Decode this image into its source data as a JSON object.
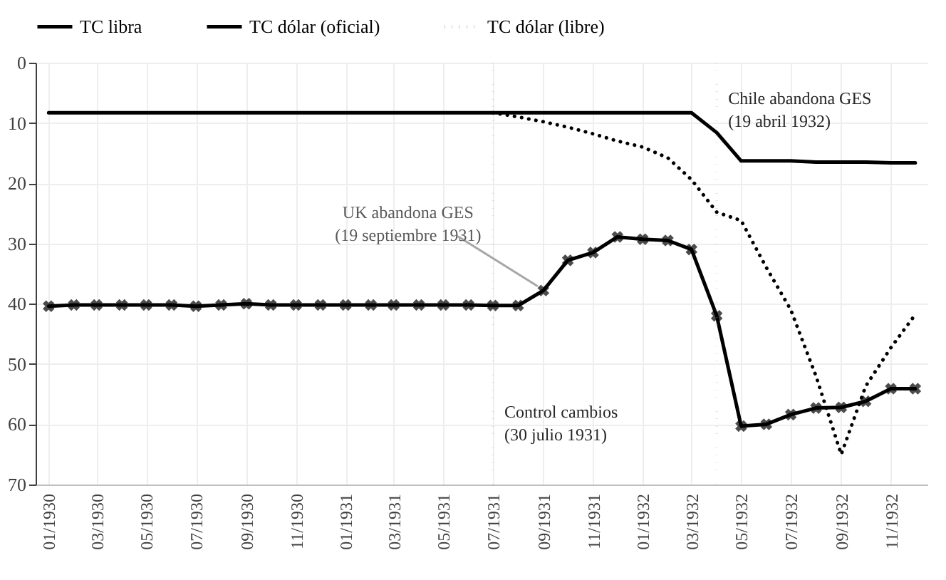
{
  "chart_data": {
    "type": "line",
    "x": [
      "1930-01",
      "1930-02",
      "1930-03",
      "1930-04",
      "1930-05",
      "1930-06",
      "1930-07",
      "1930-08",
      "1930-09",
      "1930-10",
      "1930-11",
      "1930-12",
      "1931-01",
      "1931-02",
      "1931-03",
      "1931-04",
      "1931-05",
      "1931-06",
      "1931-07",
      "1931-08",
      "1931-09",
      "1931-10",
      "1931-11",
      "1931-12",
      "1932-01",
      "1932-02",
      "1932-03",
      "1932-04",
      "1932-05",
      "1932-06",
      "1932-07",
      "1932-08",
      "1932-09",
      "1932-10",
      "1932-11",
      "1932-12"
    ],
    "series": [
      {
        "name": "TC libra",
        "color": "#000000",
        "marker": "cross",
        "line_style": "solid",
        "values": [
          40.4,
          40.2,
          40.2,
          40.2,
          40.2,
          40.2,
          40.4,
          40.2,
          40.0,
          40.2,
          40.2,
          40.2,
          40.2,
          40.2,
          40.2,
          40.2,
          40.2,
          40.2,
          40.3,
          40.3,
          37.8,
          32.8,
          31.5,
          28.9,
          29.3,
          29.5,
          31.0,
          42.0,
          60.3,
          60.0,
          58.4,
          57.3,
          57.2,
          56.2,
          54.1,
          54.1
        ]
      },
      {
        "name": "TC dólar (oficial)",
        "color": "#000000",
        "marker": "none",
        "line_style": "solid",
        "values": [
          8.3,
          8.3,
          8.3,
          8.3,
          8.3,
          8.3,
          8.3,
          8.3,
          8.3,
          8.3,
          8.3,
          8.3,
          8.3,
          8.3,
          8.3,
          8.3,
          8.3,
          8.3,
          8.3,
          8.3,
          8.3,
          8.3,
          8.3,
          8.3,
          8.3,
          8.3,
          8.3,
          11.6,
          16.3,
          16.3,
          16.3,
          16.5,
          16.5,
          16.5,
          16.6,
          16.6
        ]
      },
      {
        "name": "TC dólar (libre)",
        "color": "#000000",
        "marker": "none",
        "line_style": "dotted",
        "values": [
          null,
          null,
          null,
          null,
          null,
          null,
          null,
          null,
          null,
          null,
          null,
          null,
          null,
          null,
          null,
          null,
          null,
          null,
          8.3,
          9.0,
          9.8,
          10.7,
          11.8,
          13.0,
          14.0,
          15.8,
          19.4,
          24.8,
          26.2,
          34.0,
          41.0,
          52.0,
          65.0,
          53.7,
          47.3,
          41.8
        ]
      }
    ],
    "xlim": [
      "1929-12-16",
      "1932-12-16"
    ],
    "xticks": [
      {
        "value": "1930-01",
        "label": "01/1930"
      },
      {
        "value": "1930-03",
        "label": "03/1930"
      },
      {
        "value": "1930-05",
        "label": "05/1930"
      },
      {
        "value": "1930-07",
        "label": "07/1930"
      },
      {
        "value": "1930-09",
        "label": "09/1930"
      },
      {
        "value": "1930-11",
        "label": "11/1930"
      },
      {
        "value": "1931-01",
        "label": "01/1931"
      },
      {
        "value": "1931-03",
        "label": "03/1931"
      },
      {
        "value": "1931-05",
        "label": "05/1931"
      },
      {
        "value": "1931-07",
        "label": "07/1931"
      },
      {
        "value": "1931-09",
        "label": "09/1931"
      },
      {
        "value": "1931-11",
        "label": "11/1931"
      },
      {
        "value": "1932-01",
        "label": "01/1932"
      },
      {
        "value": "1932-03",
        "label": "03/1932"
      },
      {
        "value": "1932-05",
        "label": "05/1932"
      },
      {
        "value": "1932-07",
        "label": "07/1932"
      },
      {
        "value": "1932-09",
        "label": "09/1932"
      },
      {
        "value": "1932-11",
        "label": "11/1932"
      }
    ],
    "ylim": [
      70,
      0
    ],
    "yticks": [
      0,
      10,
      20,
      30,
      40,
      50,
      60,
      70
    ],
    "grid": true,
    "legend": "top",
    "ref_lines": [
      {
        "axis": "x",
        "value": "1931-07",
        "label": "Control cambios\n(30 julio 1931)",
        "color": "#a6a6a6",
        "line_style": "dotted"
      },
      {
        "axis": "x",
        "value": "1932-04",
        "label": "Chile abandona GES\n(19 abril 1932)",
        "color": "#a6a6a6",
        "line_style": "dotted"
      }
    ],
    "annotations": [
      {
        "text": "UK abandona GES\n(19 septiembre 1931)",
        "x": "1931-09",
        "y": 37.8
      }
    ]
  }
}
